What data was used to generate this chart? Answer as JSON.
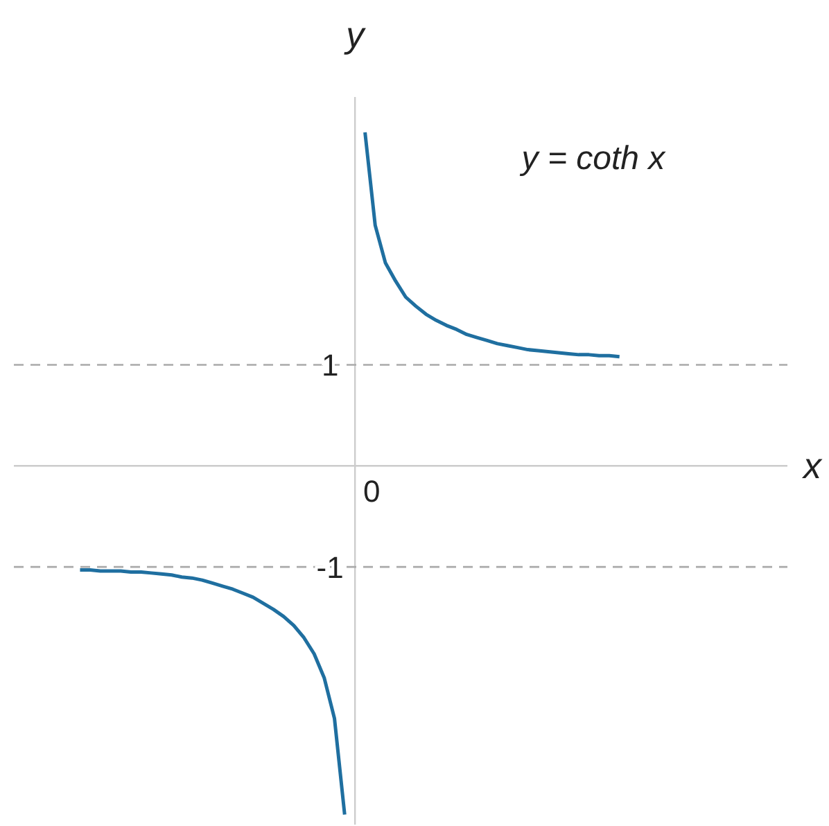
{
  "chart_data": {
    "type": "line",
    "xlabel": "x",
    "ylabel": "y",
    "annotations": [
      "y = coth x",
      "0"
    ],
    "categories": [
      null,
      null,
      null,
      null,
      null,
      null,
      null,
      null,
      null,
      null,
      null,
      null,
      null,
      null,
      null,
      null,
      null,
      null,
      null,
      null,
      null,
      null,
      null,
      null,
      null,
      null,
      null,
      null,
      null,
      null,
      null,
      null,
      null,
      null,
      null,
      null,
      null,
      null,
      null,
      null,
      null,
      null,
      null,
      null,
      null,
      null,
      null,
      null,
      null,
      null,
      null,
      null,
      null,
      null,
      null,
      null,
      null,
      null,
      null,
      null,
      null,
      null,
      null,
      null,
      null,
      null,
      null,
      null,
      null,
      null,
      null,
      null,
      null,
      null,
      null,
      null
    ],
    "ylim": [
      -3.55,
      3.65
    ],
    "yticks": [
      1,
      -1
    ],
    "ref_lines": [
      {
        "axis": "y",
        "value": 1,
        "label": null,
        "color": "#aaaaaa",
        "line_style": "dashed"
      },
      {
        "axis": "y",
        "value": -1,
        "label": null,
        "color": "#aaaaaa",
        "line_style": "dashed"
      }
    ],
    "marker": "none",
    "line_style": "solid",
    "series": [
      {
        "color": "#1f6fa0",
        "values": [
          null,
          null,
          null,
          null,
          null,
          null,
          null,
          null,
          null,
          null,
          null,
          null,
          null,
          null,
          null,
          null,
          null,
          null,
          null,
          null,
          null,
          null,
          null,
          null,
          null,
          null,
          null,
          null,
          null,
          null,
          null,
          null,
          null,
          null,
          3.3,
          2.38,
          2.01,
          1.83,
          1.67,
          1.58,
          1.5,
          1.44,
          1.39,
          1.35,
          1.3,
          1.27,
          1.24,
          1.21,
          1.19,
          1.17,
          1.15,
          1.14,
          1.13,
          1.12,
          1.11,
          1.1,
          1.1,
          1.09,
          1.09,
          1.08,
          null,
          null,
          null,
          null,
          null,
          null,
          null,
          null,
          null,
          null,
          null,
          null,
          null,
          null,
          null,
          null
        ]
      },
      {
        "color": "#1f6fa0",
        "values": [
          null,
          null,
          null,
          null,
          null,
          null,
          -1.03,
          -1.03,
          -1.04,
          -1.04,
          -1.04,
          -1.05,
          -1.05,
          -1.06,
          -1.07,
          -1.08,
          -1.1,
          -1.11,
          -1.13,
          -1.16,
          -1.19,
          -1.22,
          -1.26,
          -1.3,
          -1.36,
          -1.42,
          -1.49,
          -1.58,
          -1.7,
          -1.86,
          -2.1,
          -2.5,
          -3.45,
          null,
          null,
          null,
          null,
          null,
          null,
          null,
          null,
          null,
          null,
          null,
          null,
          null,
          null,
          null,
          null,
          null,
          null,
          null,
          null,
          null,
          null,
          null,
          null,
          null,
          null,
          null,
          null,
          null,
          null,
          null,
          null,
          null,
          null,
          null,
          null,
          null,
          null,
          null,
          null,
          null,
          null,
          null
        ]
      }
    ]
  }
}
